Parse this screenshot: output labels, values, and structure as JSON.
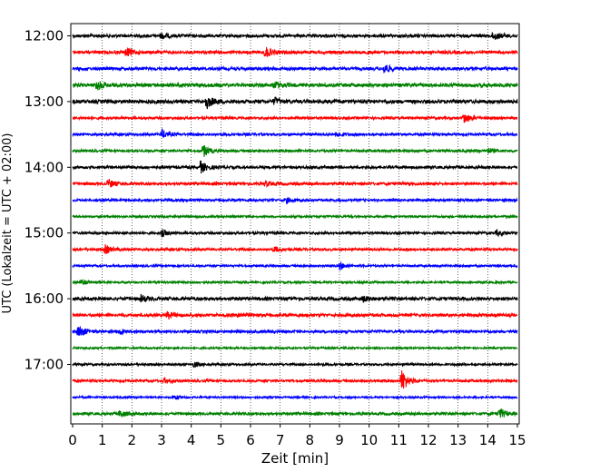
{
  "chart_data": {
    "type": "line",
    "title": "",
    "xlabel": "Zeit  [min]",
    "ylabel": "UTC (Lokalzeit = UTC + 02:00)",
    "xlim": [
      0,
      15
    ],
    "x_ticks": [
      0,
      1,
      2,
      3,
      4,
      5,
      6,
      7,
      8,
      9,
      10,
      11,
      12,
      13,
      14,
      15
    ],
    "y_tick_labels": [
      "12:00",
      "13:00",
      "14:00",
      "15:00",
      "16:00",
      "17:00"
    ],
    "vertical_grid": "dotted, every minute",
    "color_cycle": [
      "#000000",
      "#ff0000",
      "#0000ff",
      "#008000"
    ],
    "traces": [
      {
        "time": "12:00",
        "color": "#000000",
        "amp": 1.0,
        "events": [
          {
            "t": 3.0,
            "a": 3
          },
          {
            "t": 14.2,
            "a": 5
          }
        ]
      },
      {
        "time": "12:15",
        "color": "#ff0000",
        "amp": 1.0,
        "events": [
          {
            "t": 1.8,
            "a": 5
          },
          {
            "t": 6.5,
            "a": 6
          }
        ]
      },
      {
        "time": "12:30",
        "color": "#0000ff",
        "amp": 1.0,
        "events": [
          {
            "t": 10.5,
            "a": 6
          }
        ]
      },
      {
        "time": "12:45",
        "color": "#008000",
        "amp": 1.2,
        "events": [
          {
            "t": 0.8,
            "a": 6
          },
          {
            "t": 6.8,
            "a": 4
          }
        ]
      },
      {
        "time": "13:00",
        "color": "#000000",
        "amp": 1.2,
        "events": [
          {
            "t": 4.5,
            "a": 8
          },
          {
            "t": 6.8,
            "a": 4
          }
        ]
      },
      {
        "time": "13:15",
        "color": "#ff0000",
        "amp": 0.8,
        "events": [
          {
            "t": 13.2,
            "a": 6
          }
        ]
      },
      {
        "time": "13:30",
        "color": "#0000ff",
        "amp": 0.8,
        "events": [
          {
            "t": 3.0,
            "a": 5
          },
          {
            "t": 8.9,
            "a": 3
          }
        ]
      },
      {
        "time": "13:45",
        "color": "#008000",
        "amp": 0.8,
        "events": [
          {
            "t": 4.4,
            "a": 7
          },
          {
            "t": 14.0,
            "a": 3
          }
        ]
      },
      {
        "time": "14:00",
        "color": "#000000",
        "amp": 0.9,
        "events": [
          {
            "t": 4.3,
            "a": 7
          }
        ]
      },
      {
        "time": "14:15",
        "color": "#ff0000",
        "amp": 0.9,
        "events": [
          {
            "t": 1.2,
            "a": 5
          },
          {
            "t": 6.5,
            "a": 3
          }
        ]
      },
      {
        "time": "14:30",
        "color": "#0000ff",
        "amp": 0.8,
        "events": [
          {
            "t": 7.2,
            "a": 3
          }
        ]
      },
      {
        "time": "14:45",
        "color": "#008000",
        "amp": 0.7,
        "events": []
      },
      {
        "time": "15:00",
        "color": "#000000",
        "amp": 0.8,
        "events": [
          {
            "t": 3.0,
            "a": 4
          },
          {
            "t": 14.3,
            "a": 3
          }
        ]
      },
      {
        "time": "15:15",
        "color": "#ff0000",
        "amp": 0.8,
        "events": [
          {
            "t": 1.1,
            "a": 5
          },
          {
            "t": 6.8,
            "a": 3
          }
        ]
      },
      {
        "time": "15:30",
        "color": "#0000ff",
        "amp": 0.7,
        "events": [
          {
            "t": 9.0,
            "a": 4
          }
        ]
      },
      {
        "time": "15:45",
        "color": "#008000",
        "amp": 0.7,
        "events": [
          {
            "t": 0.3,
            "a": 3
          }
        ]
      },
      {
        "time": "16:00",
        "color": "#000000",
        "amp": 1.1,
        "events": [
          {
            "t": 2.3,
            "a": 4
          },
          {
            "t": 9.8,
            "a": 3
          }
        ]
      },
      {
        "time": "16:15",
        "color": "#ff0000",
        "amp": 1.0,
        "events": [
          {
            "t": 3.2,
            "a": 4
          },
          {
            "t": 5.6,
            "a": 3
          }
        ]
      },
      {
        "time": "16:30",
        "color": "#0000ff",
        "amp": 0.9,
        "events": [
          {
            "t": 0.2,
            "a": 7
          },
          {
            "t": 1.6,
            "a": 3
          }
        ]
      },
      {
        "time": "16:45",
        "color": "#008000",
        "amp": 0.6,
        "events": []
      },
      {
        "time": "17:00",
        "color": "#000000",
        "amp": 0.7,
        "events": [
          {
            "t": 4.1,
            "a": 3
          }
        ]
      },
      {
        "time": "17:15",
        "color": "#ff0000",
        "amp": 0.8,
        "events": [
          {
            "t": 11.1,
            "a": 13
          },
          {
            "t": 3.1,
            "a": 3
          }
        ]
      },
      {
        "time": "17:30",
        "color": "#0000ff",
        "amp": 0.6,
        "events": [
          {
            "t": 3.4,
            "a": 3
          }
        ]
      },
      {
        "time": "17:45",
        "color": "#008000",
        "amp": 0.9,
        "events": [
          {
            "t": 1.6,
            "a": 4
          },
          {
            "t": 14.4,
            "a": 6
          }
        ]
      }
    ]
  }
}
